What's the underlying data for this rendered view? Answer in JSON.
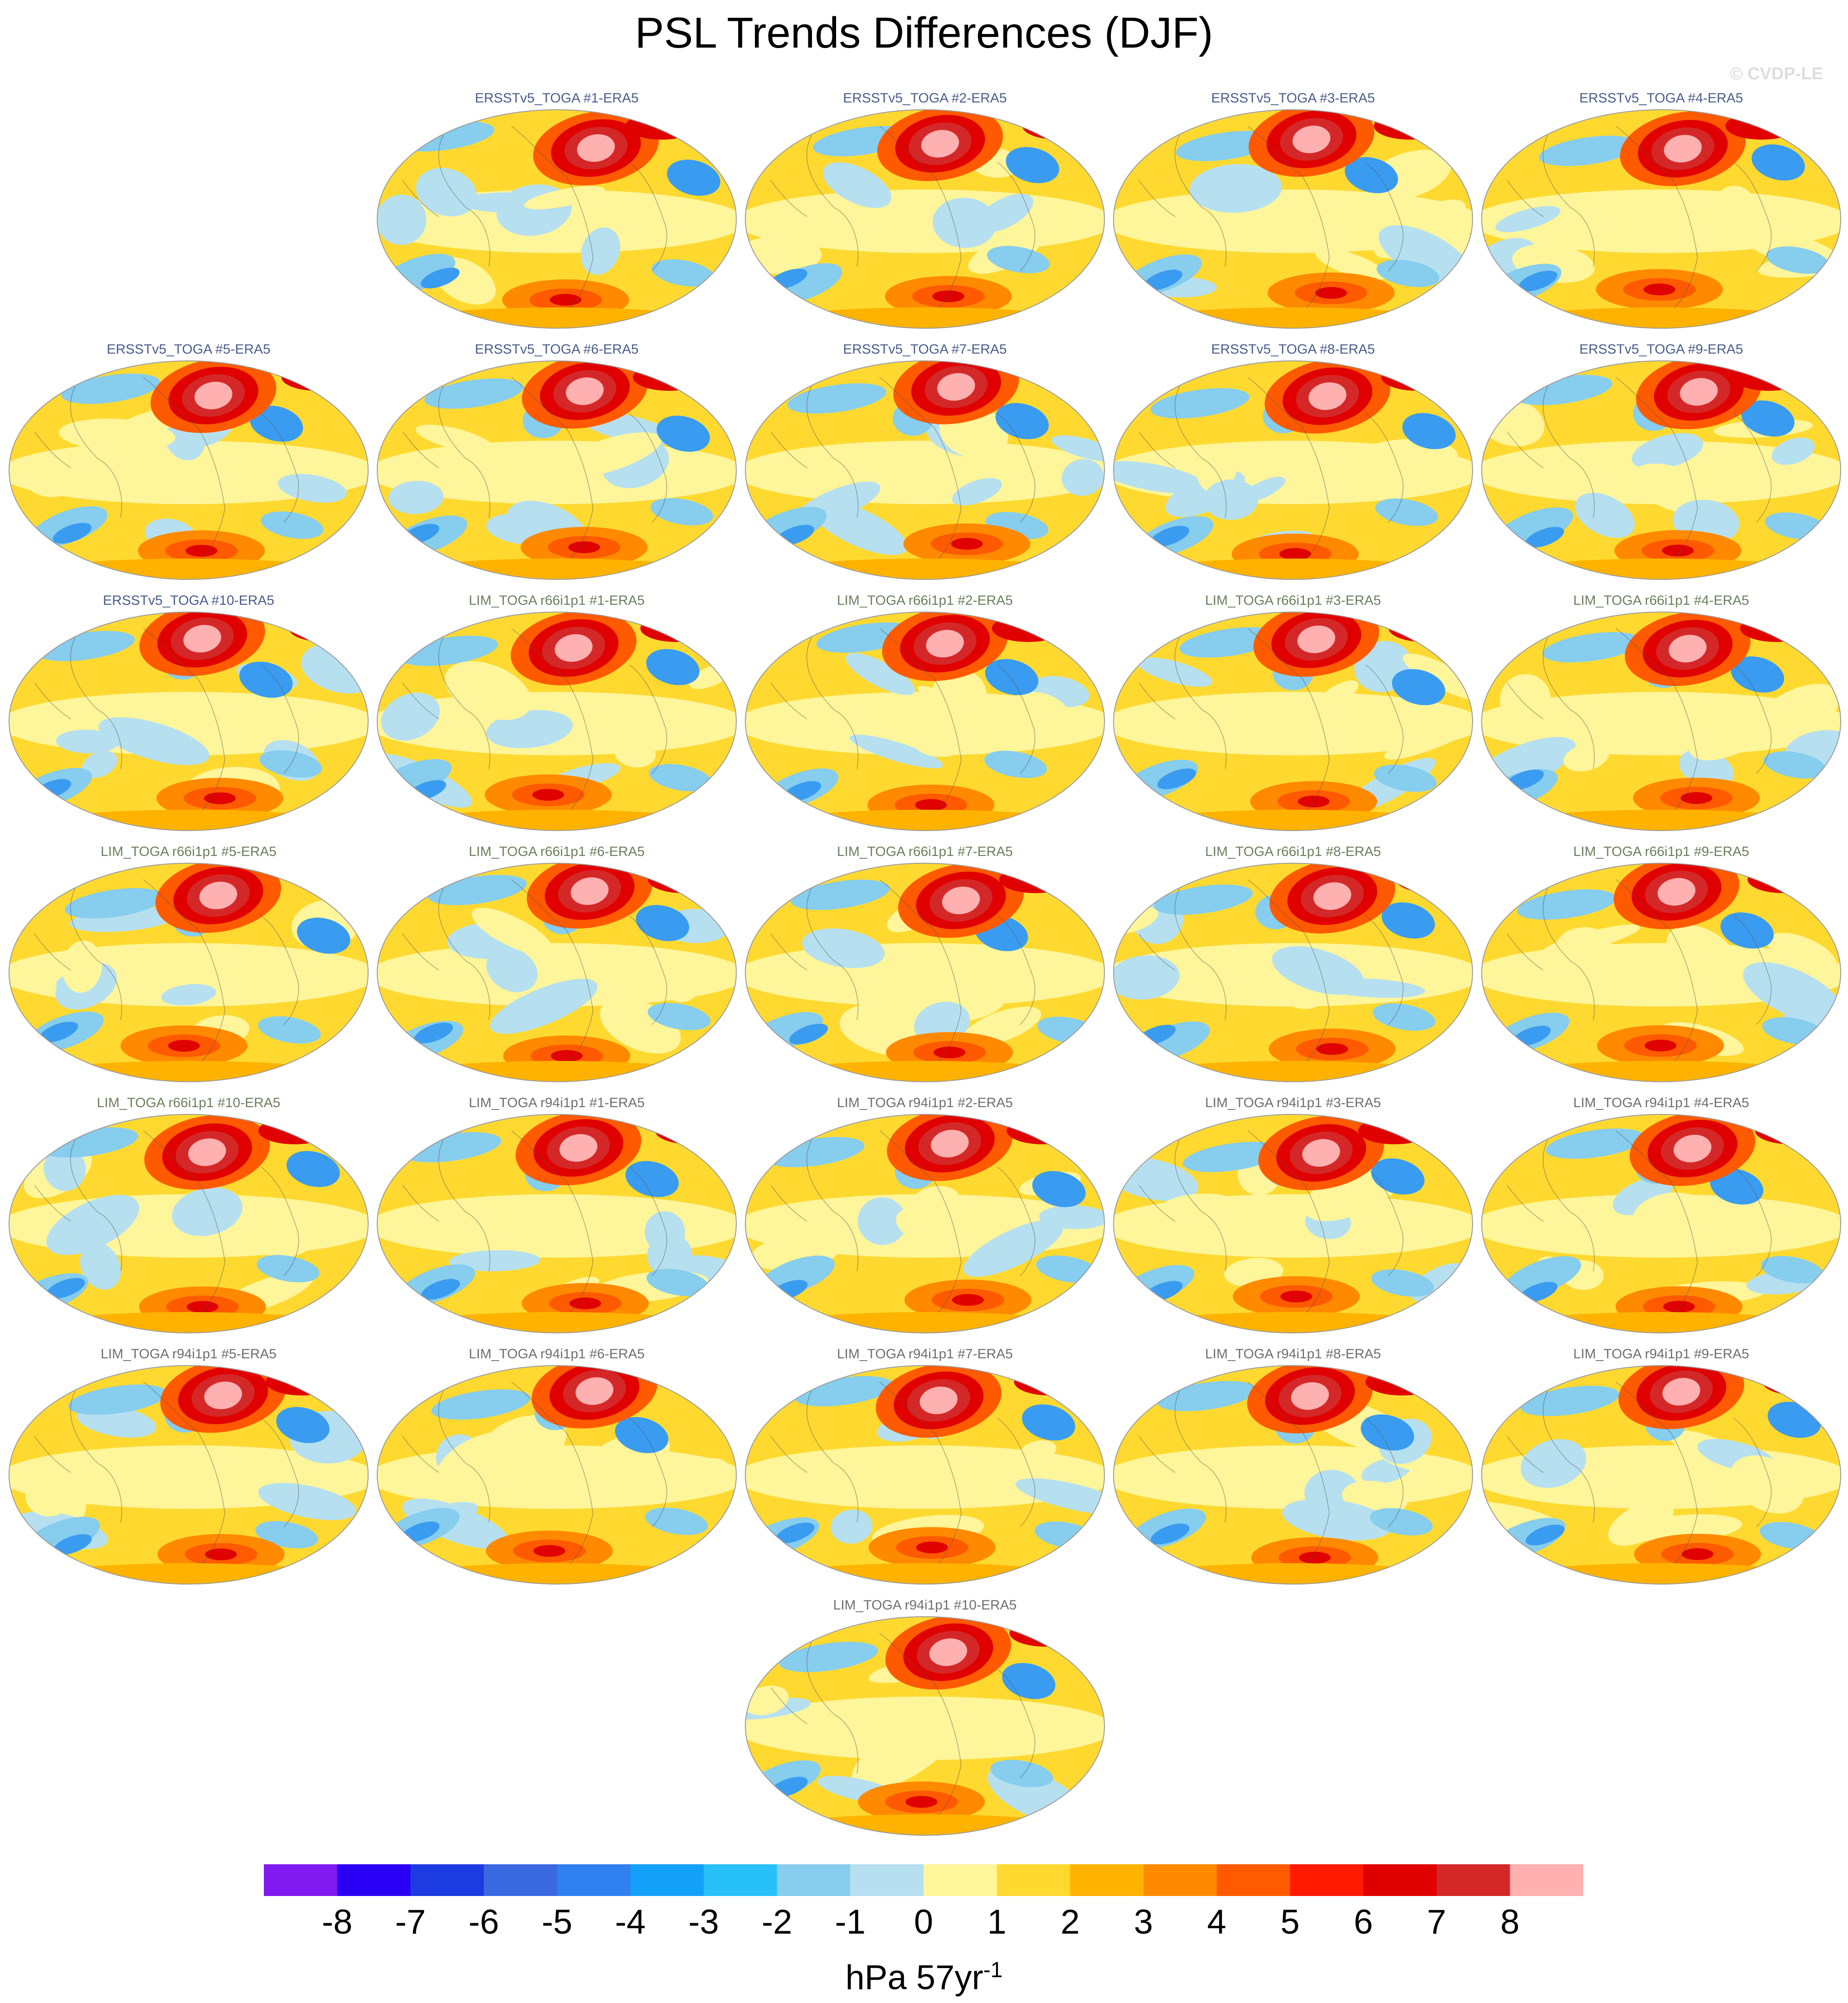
{
  "title": "PSL Trends Differences (DJF)",
  "copyright": "© CVDP-LE",
  "panels": [
    {
      "label": "ERSSTv5_TOGA #1-ERA5",
      "group": "ersst"
    },
    {
      "label": "ERSSTv5_TOGA #2-ERA5",
      "group": "ersst"
    },
    {
      "label": "ERSSTv5_TOGA #3-ERA5",
      "group": "ersst"
    },
    {
      "label": "ERSSTv5_TOGA #4-ERA5",
      "group": "ersst"
    },
    {
      "label": "ERSSTv5_TOGA #5-ERA5",
      "group": "ersst"
    },
    {
      "label": "ERSSTv5_TOGA #6-ERA5",
      "group": "ersst"
    },
    {
      "label": "ERSSTv5_TOGA #7-ERA5",
      "group": "ersst"
    },
    {
      "label": "ERSSTv5_TOGA #8-ERA5",
      "group": "ersst"
    },
    {
      "label": "ERSSTv5_TOGA #9-ERA5",
      "group": "ersst"
    },
    {
      "label": "ERSSTv5_TOGA #10-ERA5",
      "group": "ersst"
    },
    {
      "label": "LIM_TOGA r66i1p1 #1-ERA5",
      "group": "lim66"
    },
    {
      "label": "LIM_TOGA r66i1p1 #2-ERA5",
      "group": "lim66"
    },
    {
      "label": "LIM_TOGA r66i1p1 #3-ERA5",
      "group": "lim66"
    },
    {
      "label": "LIM_TOGA r66i1p1 #4-ERA5",
      "group": "lim66"
    },
    {
      "label": "LIM_TOGA r66i1p1 #5-ERA5",
      "group": "lim66"
    },
    {
      "label": "LIM_TOGA r66i1p1 #6-ERA5",
      "group": "lim66"
    },
    {
      "label": "LIM_TOGA r66i1p1 #7-ERA5",
      "group": "lim66"
    },
    {
      "label": "LIM_TOGA r66i1p1 #8-ERA5",
      "group": "lim66"
    },
    {
      "label": "LIM_TOGA r66i1p1 #9-ERA5",
      "group": "lim66"
    },
    {
      "label": "LIM_TOGA r66i1p1 #10-ERA5",
      "group": "lim66"
    },
    {
      "label": "LIM_TOGA r94i1p1 #1-ERA5",
      "group": "lim94"
    },
    {
      "label": "LIM_TOGA r94i1p1 #2-ERA5",
      "group": "lim94"
    },
    {
      "label": "LIM_TOGA r94i1p1 #3-ERA5",
      "group": "lim94"
    },
    {
      "label": "LIM_TOGA r94i1p1 #4-ERA5",
      "group": "lim94"
    },
    {
      "label": "LIM_TOGA r94i1p1 #5-ERA5",
      "group": "lim94"
    },
    {
      "label": "LIM_TOGA r94i1p1 #6-ERA5",
      "group": "lim94"
    },
    {
      "label": "LIM_TOGA r94i1p1 #7-ERA5",
      "group": "lim94"
    },
    {
      "label": "LIM_TOGA r94i1p1 #8-ERA5",
      "group": "lim94"
    },
    {
      "label": "LIM_TOGA r94i1p1 #9-ERA5",
      "group": "lim94"
    },
    {
      "label": "LIM_TOGA r94i1p1 #10-ERA5",
      "group": "lim94"
    }
  ],
  "colorbar": {
    "colors": [
      "#7f1bf0",
      "#2a00f5",
      "#1c3be0",
      "#3a68e0",
      "#2f80f0",
      "#13a0f8",
      "#27c0f8",
      "#86cdee",
      "#b6e0f0",
      "#fff59a",
      "#ffd930",
      "#ffb300",
      "#ff8a00",
      "#ff5a00",
      "#ff1a00",
      "#e00000",
      "#d42828",
      "#ffb0b0"
    ],
    "tick_labels": [
      "-8",
      "-7",
      "-6",
      "-5",
      "-4",
      "-3",
      "-2",
      "-1",
      "0",
      "1",
      "2",
      "3",
      "4",
      "5",
      "6",
      "7",
      "8"
    ]
  },
  "units_text": "hPa 57yr",
  "units_exponent": "-1"
}
